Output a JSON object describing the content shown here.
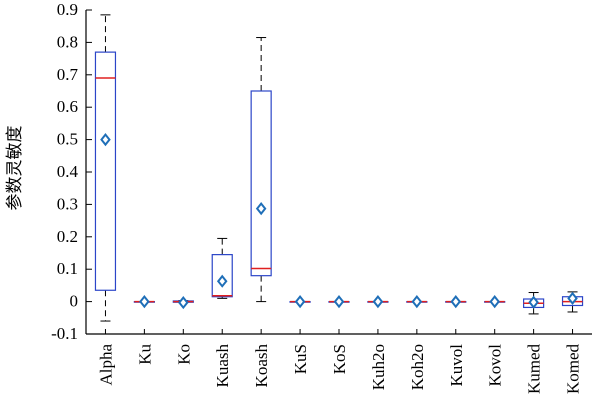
{
  "chart_data": {
    "type": "boxplot",
    "ylabel": "参数灵敏度",
    "xlabel": "",
    "ylim": [
      -0.1,
      0.9
    ],
    "yticks": [
      -0.1,
      0,
      0.1,
      0.2,
      0.3,
      0.4,
      0.5,
      0.6,
      0.7,
      0.8,
      0.9
    ],
    "ytick_labels": [
      "-0.1",
      "0",
      "0.1",
      "0.2",
      "0.3",
      "0.4",
      "0.5",
      "0.6",
      "0.7",
      "0.8",
      "0.9"
    ],
    "categories": [
      "Alpha",
      "Ku",
      "Ko",
      "Kuash",
      "Koash",
      "KuS",
      "KoS",
      "Kuh2o",
      "Koh2o",
      "Kuvol",
      "Kovol",
      "Kumed",
      "Komed"
    ],
    "boxes": [
      {
        "category": "Alpha",
        "whisker_low": -0.06,
        "q1": 0.035,
        "median": 0.69,
        "q3": 0.77,
        "whisker_high": 0.885,
        "mean": 0.5
      },
      {
        "category": "Ku",
        "whisker_low": 0.0,
        "q1": 0.0,
        "median": 0.0,
        "q3": 0.0,
        "whisker_high": 0.0,
        "mean": 0.0
      },
      {
        "category": "Ko",
        "whisker_low": -0.003,
        "q1": -0.002,
        "median": 0.0,
        "q3": 0.002,
        "whisker_high": 0.003,
        "mean": -0.003
      },
      {
        "category": "Kuash",
        "whisker_low": 0.01,
        "q1": 0.015,
        "median": 0.018,
        "q3": 0.145,
        "whisker_high": 0.195,
        "mean": 0.063
      },
      {
        "category": "Koash",
        "whisker_low": 0.0,
        "q1": 0.08,
        "median": 0.102,
        "q3": 0.65,
        "whisker_high": 0.815,
        "mean": 0.287
      },
      {
        "category": "KuS",
        "whisker_low": 0.0,
        "q1": 0.0,
        "median": 0.0,
        "q3": 0.0,
        "whisker_high": 0.0,
        "mean": 0.0
      },
      {
        "category": "KoS",
        "whisker_low": 0.0,
        "q1": 0.0,
        "median": 0.0,
        "q3": 0.0,
        "whisker_high": 0.0,
        "mean": 0.0
      },
      {
        "category": "Kuh2o",
        "whisker_low": 0.0,
        "q1": 0.0,
        "median": 0.0,
        "q3": 0.0,
        "whisker_high": 0.0,
        "mean": 0.0
      },
      {
        "category": "Koh2o",
        "whisker_low": 0.0,
        "q1": 0.0,
        "median": 0.0,
        "q3": 0.0,
        "whisker_high": 0.0,
        "mean": 0.0
      },
      {
        "category": "Kuvol",
        "whisker_low": 0.0,
        "q1": 0.0,
        "median": 0.0,
        "q3": 0.0,
        "whisker_high": 0.0,
        "mean": 0.0
      },
      {
        "category": "Kovol",
        "whisker_low": 0.0,
        "q1": 0.0,
        "median": 0.0,
        "q3": 0.0,
        "whisker_high": 0.0,
        "mean": 0.0
      },
      {
        "category": "Kumed",
        "whisker_low": -0.038,
        "q1": -0.018,
        "median": -0.005,
        "q3": 0.008,
        "whisker_high": 0.028,
        "mean": -0.002
      },
      {
        "category": "Komed",
        "whisker_low": -0.032,
        "q1": -0.012,
        "median": 0.0,
        "q3": 0.015,
        "whisker_high": 0.03,
        "mean": 0.01
      }
    ],
    "grid": false,
    "legend": "none",
    "colors": {
      "box": "#2b45c8",
      "median": "#e02020",
      "whisker": "#000000",
      "mean_marker": "#1f6fb8"
    }
  }
}
